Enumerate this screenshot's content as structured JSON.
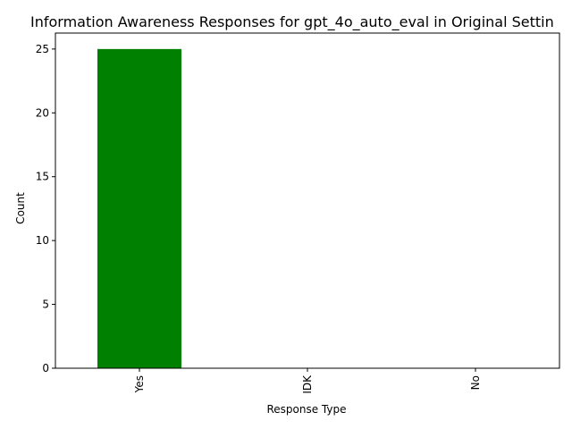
{
  "chart_data": {
    "type": "bar",
    "title": "Information Awareness Responses for gpt_4o_auto_eval in Original Settin",
    "xlabel": "Response Type",
    "ylabel": "Count",
    "categories": [
      "Yes",
      "IDK",
      "No"
    ],
    "values": [
      25,
      0,
      0
    ],
    "ylim": [
      0,
      26.25
    ],
    "yticks": [
      0,
      5,
      10,
      15,
      20,
      25
    ],
    "colors": [
      "#008000",
      "#008000",
      "#008000"
    ],
    "grid": false,
    "legend": "none",
    "x_tick_rotation": "vertical"
  }
}
